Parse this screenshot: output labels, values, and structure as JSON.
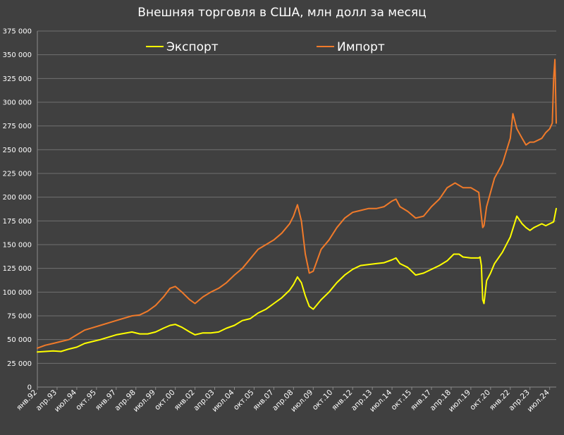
{
  "chart_data": {
    "type": "line",
    "title": "Внешняя торговля в США, млн долл за месяц",
    "xlabel": "",
    "ylabel": "",
    "ylim": [
      0,
      375000
    ],
    "yticks": [
      0,
      25000,
      50000,
      75000,
      100000,
      125000,
      150000,
      175000,
      200000,
      225000,
      250000,
      275000,
      300000,
      325000,
      350000,
      375000
    ],
    "ytick_labels": [
      "0",
      "25 000",
      "50 000",
      "75 000",
      "100 000",
      "125 000",
      "150 000",
      "175 000",
      "200 000",
      "225 000",
      "250 000",
      "275 000",
      "300 000",
      "325 000",
      "350 000",
      "375 000"
    ],
    "xlim": [
      "1992-01",
      "2024-12"
    ],
    "xticks": [
      "1992-01",
      "1993-04",
      "1994-07",
      "1995-10",
      "1997-01",
      "1998-04",
      "1999-07",
      "2000-10",
      "2002-01",
      "2003-04",
      "2004-07",
      "2005-10",
      "2007-01",
      "2008-04",
      "2009-07",
      "2010-10",
      "2012-01",
      "2013-04",
      "2014-07",
      "2015-10",
      "2017-01",
      "2018-04",
      "2019-07",
      "2020-10",
      "2022-01",
      "2023-04",
      "2024-07"
    ],
    "xtick_labels": [
      "янв.92",
      "апр.93",
      "июл.94",
      "окт.95",
      "янв.97",
      "апр.98",
      "июл.99",
      "окт.00",
      "янв.02",
      "апр.03",
      "июл.04",
      "окт.05",
      "янв.07",
      "апр.08",
      "июл.09",
      "окт.10",
      "янв.12",
      "апр.13",
      "июл.14",
      "окт.15",
      "янв.17",
      "апр.18",
      "июл.19",
      "окт.20",
      "янв.22",
      "апр.23",
      "июл.24"
    ],
    "grid": true,
    "legend_position": "top",
    "series": [
      {
        "name": "Экспорт",
        "color": "#ffff00",
        "x": [
          "1992-01",
          "1993-01",
          "1993-07",
          "1994-01",
          "1994-07",
          "1995-01",
          "1996-01",
          "1997-01",
          "1998-01",
          "1998-07",
          "1999-01",
          "1999-07",
          "2000-01",
          "2000-06",
          "2000-10",
          "2001-03",
          "2001-09",
          "2002-01",
          "2002-07",
          "2003-01",
          "2003-07",
          "2004-01",
          "2004-07",
          "2005-01",
          "2005-07",
          "2006-01",
          "2006-07",
          "2007-01",
          "2007-07",
          "2008-01",
          "2008-04",
          "2008-07",
          "2008-10",
          "2009-01",
          "2009-04",
          "2009-07",
          "2010-01",
          "2010-07",
          "2011-01",
          "2011-07",
          "2012-01",
          "2012-07",
          "2013-01",
          "2013-07",
          "2014-01",
          "2014-07",
          "2014-10",
          "2015-01",
          "2015-07",
          "2016-01",
          "2016-07",
          "2017-01",
          "2017-07",
          "2018-01",
          "2018-06",
          "2018-10",
          "2019-01",
          "2019-07",
          "2020-01",
          "2020-02",
          "2020-03",
          "2020-04",
          "2020-05",
          "2020-07",
          "2020-10",
          "2021-01",
          "2021-07",
          "2022-01",
          "2022-06",
          "2022-10",
          "2023-01",
          "2023-04",
          "2023-07",
          "2024-01",
          "2024-04",
          "2024-07",
          "2024-10",
          "2024-12"
        ],
        "values": [
          37000,
          38000,
          37500,
          40000,
          42000,
          46000,
          50000,
          55000,
          58000,
          56000,
          56000,
          58000,
          62000,
          65000,
          66000,
          63000,
          58000,
          55000,
          57000,
          57000,
          58000,
          62000,
          65000,
          70000,
          72000,
          78000,
          82000,
          88000,
          94000,
          102000,
          108000,
          116000,
          110000,
          96000,
          85000,
          82000,
          92000,
          100000,
          110000,
          118000,
          124000,
          128000,
          129000,
          130000,
          131000,
          134000,
          136000,
          130000,
          126000,
          118000,
          120000,
          124000,
          128000,
          133000,
          140000,
          140000,
          137000,
          136000,
          136000,
          137000,
          128000,
          92000,
          88000,
          112000,
          120000,
          130000,
          142000,
          158000,
          180000,
          172000,
          168000,
          165000,
          168000,
          172000,
          170000,
          172000,
          174000,
          188000
        ]
      },
      {
        "name": "Импорт",
        "color": "#f07a2a",
        "x": [
          "1992-01",
          "1992-07",
          "1993-01",
          "1993-07",
          "1994-01",
          "1994-07",
          "1995-01",
          "1996-01",
          "1997-01",
          "1998-01",
          "1998-07",
          "1999-01",
          "1999-07",
          "2000-01",
          "2000-06",
          "2000-10",
          "2001-03",
          "2001-09",
          "2002-01",
          "2002-07",
          "2003-01",
          "2003-07",
          "2004-01",
          "2004-07",
          "2005-01",
          "2005-07",
          "2006-01",
          "2006-07",
          "2007-01",
          "2007-07",
          "2008-01",
          "2008-04",
          "2008-07",
          "2008-10",
          "2009-01",
          "2009-04",
          "2009-07",
          "2010-01",
          "2010-07",
          "2011-01",
          "2011-07",
          "2012-01",
          "2012-07",
          "2013-01",
          "2013-07",
          "2014-01",
          "2014-07",
          "2014-10",
          "2015-01",
          "2015-07",
          "2016-01",
          "2016-07",
          "2017-01",
          "2017-07",
          "2018-01",
          "2018-07",
          "2019-01",
          "2019-07",
          "2020-01",
          "2020-03",
          "2020-04",
          "2020-05",
          "2020-07",
          "2020-10",
          "2021-01",
          "2021-07",
          "2022-01",
          "2022-03",
          "2022-06",
          "2022-10",
          "2023-01",
          "2023-04",
          "2023-07",
          "2024-01",
          "2024-04",
          "2024-07",
          "2024-09",
          "2024-10",
          "2024-11",
          "2024-12"
        ],
        "values": [
          41000,
          44000,
          46000,
          48000,
          50000,
          55000,
          60000,
          65000,
          70000,
          75000,
          76000,
          80000,
          86000,
          95000,
          104000,
          106000,
          100000,
          92000,
          88000,
          95000,
          100000,
          104000,
          110000,
          118000,
          125000,
          135000,
          145000,
          150000,
          155000,
          162000,
          172000,
          180000,
          192000,
          175000,
          140000,
          120000,
          122000,
          145000,
          155000,
          168000,
          178000,
          184000,
          186000,
          188000,
          188000,
          190000,
          196000,
          198000,
          190000,
          185000,
          178000,
          180000,
          190000,
          198000,
          210000,
          215000,
          210000,
          210000,
          205000,
          180000,
          168000,
          170000,
          190000,
          205000,
          220000,
          235000,
          262000,
          288000,
          272000,
          262000,
          255000,
          258000,
          258000,
          262000,
          268000,
          272000,
          278000,
          325000,
          345000,
          278000
        ]
      }
    ]
  }
}
